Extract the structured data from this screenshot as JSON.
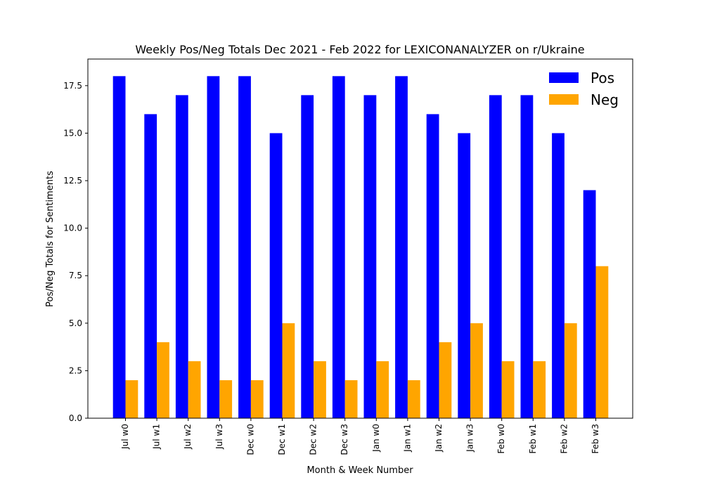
{
  "chart_data": {
    "type": "bar",
    "title": "Weekly Pos/Neg Totals Dec 2021 - Feb 2022 for LEXICONANALYZER on r/Ukraine",
    "xlabel": "Month & Week Number",
    "ylabel": "Pos/Neg Totals for Sentiments",
    "categories": [
      "Jul w0",
      "Jul w1",
      "Jul w2",
      "Jul w3",
      "Dec w0",
      "Dec w1",
      "Dec w2",
      "Dec w3",
      "Jan w0",
      "Jan w1",
      "Jan w2",
      "Jan w3",
      "Feb w0",
      "Feb w1",
      "Feb w2",
      "Feb w3"
    ],
    "series": [
      {
        "name": "Pos",
        "color": "#0000ff",
        "values": [
          18,
          16,
          17,
          18,
          18,
          15,
          17,
          18,
          17,
          18,
          16,
          15,
          17,
          17,
          15,
          12
        ]
      },
      {
        "name": "Neg",
        "color": "#ffa500",
        "values": [
          2,
          4,
          3,
          2,
          2,
          5,
          3,
          2,
          3,
          2,
          4,
          5,
          3,
          3,
          5,
          8
        ]
      }
    ],
    "ylim": [
      0,
      18.9
    ],
    "yticks": [
      "0.0",
      "2.5",
      "5.0",
      "7.5",
      "10.0",
      "12.5",
      "15.0",
      "17.5"
    ],
    "legend": "top-right",
    "grid": false
  }
}
